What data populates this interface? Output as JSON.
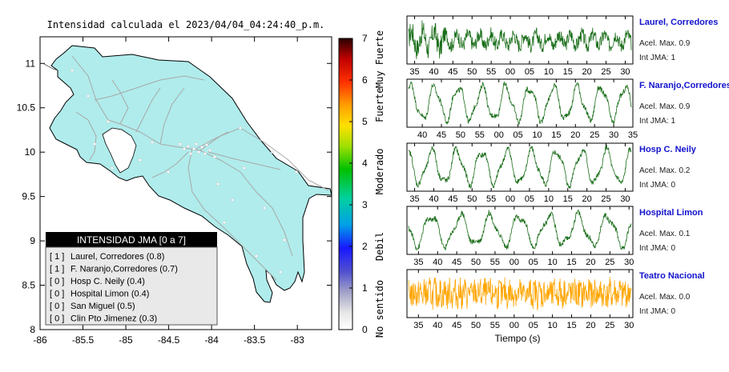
{
  "map": {
    "title": "Intensidad calculada el 2023/04/04_04:24:40_p.m.",
    "lon_ticks": [
      "-86",
      "-85.5",
      "-85",
      "-84.5",
      "-84",
      "-83.5",
      "-83"
    ],
    "lon_values": [
      -86,
      -85.5,
      -85,
      -84.5,
      -84,
      -83.5,
      -83
    ],
    "lat_ticks": [
      "11",
      "10.5",
      "10",
      "9.5",
      "9",
      "8.5",
      "8"
    ],
    "lat_values": [
      11,
      10.5,
      10,
      9.5,
      9,
      8.5,
      8
    ],
    "xlim": [
      -86,
      -82.6
    ],
    "ylim": [
      8,
      11.3
    ],
    "land_color": "#b0ecec",
    "border_color": "#000000"
  },
  "legend": {
    "title": "INTENSIDAD JMA [0 a 7]",
    "rows": [
      {
        "level": "[ 1 ]",
        "station": "Laurel, Corredores (0.8)"
      },
      {
        "level": "[ 1 ]",
        "station": "F. Naranjo,Corredores (0.7)"
      },
      {
        "level": "[ 0 ]",
        "station": "Hosp C. Neily (0.4)"
      },
      {
        "level": "[ 0 ]",
        "station": "Hospital Limon (0.4)"
      },
      {
        "level": "[ 0 ]",
        "station": "San Miguel (0.5)"
      },
      {
        "level": "[ 0 ]",
        "station": "Clin Pto Jimenez (0.3)"
      }
    ]
  },
  "colorbar": {
    "ticks": [
      "0",
      "1",
      "2",
      "3",
      "4",
      "5",
      "6",
      "7"
    ],
    "range": [
      0,
      7
    ],
    "labels": [
      {
        "text": "No sentido",
        "center": 0.5
      },
      {
        "text": "Debil",
        "center": 2
      },
      {
        "text": "Moderado",
        "center": 3.8
      },
      {
        "text": "Fuerte",
        "center": 5.4
      },
      {
        "text": "Muy Fuerte",
        "center": 6.5
      }
    ]
  },
  "traces": [
    {
      "station": "Laurel, Corredores",
      "acel": "Acel. Max. 0.9",
      "int": "Int JMA: 1",
      "color": "#1a6e1a",
      "ticks": [
        "35",
        "40",
        "45",
        "50",
        "55",
        "00",
        "05",
        "10",
        "15",
        "20",
        "25",
        "30"
      ],
      "tick_start": 35,
      "t_min": 33,
      "t_max": 32
    },
    {
      "station": "F. Naranjo,Corredores",
      "acel": "Acel. Max. 0.9",
      "int": "Int JMA: 1",
      "color": "#1a6e1a",
      "ticks": [
        "40",
        "45",
        "50",
        "55",
        "00",
        "05",
        "10",
        "15",
        "20",
        "25",
        "30",
        "35"
      ],
      "tick_start": 40,
      "t_min": 36,
      "t_max": 35
    },
    {
      "station": "Hosp C. Neily",
      "acel": "Acel. Max. 0.2",
      "int": "Int JMA: 0",
      "color": "#1a6e1a",
      "ticks": [
        "35",
        "40",
        "45",
        "50",
        "55",
        "00",
        "05",
        "10",
        "15",
        "20",
        "25",
        "30"
      ],
      "tick_start": 35,
      "t_min": 33,
      "t_max": 32
    },
    {
      "station": "Hospital Limon",
      "acel": "Acel. Max. 0.1",
      "int": "Int JMA: 0",
      "color": "#1a6e1a",
      "ticks": [
        "35",
        "40",
        "45",
        "50",
        "55",
        "00",
        "05",
        "10",
        "15",
        "20",
        "25",
        "30"
      ],
      "tick_start": 35,
      "t_min": 32,
      "t_max": 31
    },
    {
      "station": "Teatro Nacional",
      "acel": "Acel. Max. 0.0",
      "int": "Int JMA: 0",
      "color": "#ffa500",
      "ticks": [
        "35",
        "40",
        "45",
        "50",
        "55",
        "00",
        "05",
        "10",
        "15",
        "20",
        "25",
        "30"
      ],
      "tick_start": 35,
      "t_min": 32,
      "t_max": 31
    }
  ],
  "xlabel": "Tiempo (s)",
  "chart_data": [
    {
      "type": "map",
      "title": "Intensidad calculada el 2023/04/04_04:24:40_p.m.",
      "xlim": [
        -86,
        -82.6
      ],
      "ylim": [
        8,
        11.3
      ],
      "legend_title": "INTENSIDAD JMA [0 a 7]"
    },
    {
      "type": "line",
      "series": [
        {
          "name": "Laurel, Corredores",
          "peak_accel": 0.9,
          "jma": 1
        },
        {
          "name": "F. Naranjo,Corredores",
          "peak_accel": 0.9,
          "jma": 1
        },
        {
          "name": "Hosp C. Neily",
          "peak_accel": 0.2,
          "jma": 0
        },
        {
          "name": "Hospital Limon",
          "peak_accel": 0.1,
          "jma": 0
        },
        {
          "name": "Teatro Nacional",
          "peak_accel": 0.0,
          "jma": 0
        }
      ],
      "xlabel": "Tiempo (s)"
    }
  ]
}
